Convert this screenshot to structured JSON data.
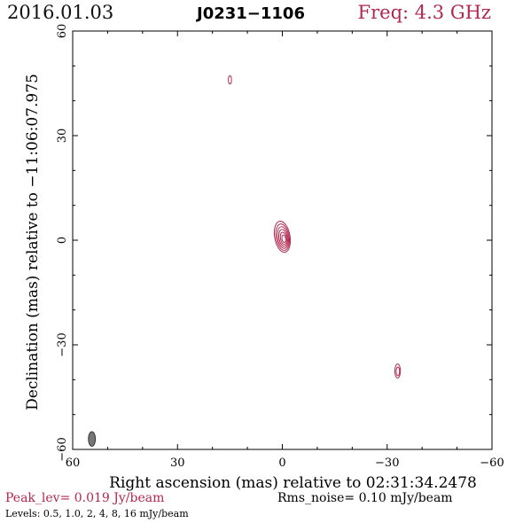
{
  "header": {
    "date": "2016.01.03",
    "source": "J0231−1106",
    "frequency": "Freq: 4.3 GHz"
  },
  "footer": {
    "peak": "Peak_lev=  0.019 Jy/beam",
    "rms": "Rms_noise= 0.10 mJy/beam",
    "levels": "Levels: 0.5, 1.0,   2,   4,   8,  16 mJy/beam"
  },
  "colors": {
    "contour": "#b0284f",
    "title_accent": "#b0284f",
    "beam": "#777777"
  },
  "chart_data": {
    "type": "contour",
    "xlabel": "Right ascension (mas) relative to 02:31:34.2478",
    "ylabel": "Declination (mas) relative to −11:06:07.975",
    "xlim": [
      60,
      -60
    ],
    "ylim": [
      -60,
      60
    ],
    "xticks": [
      60,
      30,
      0,
      -30,
      -60
    ],
    "yticks": [
      -60,
      -30,
      0,
      30,
      60
    ],
    "xtick_labels": [
      "60",
      "30",
      "0",
      "−30",
      "−60"
    ],
    "ytick_labels": [
      "−60",
      "−30",
      "0",
      "30",
      "60"
    ],
    "contour_levels_mJy_per_beam": [
      0.5,
      1.0,
      2,
      4,
      8,
      16
    ],
    "peak_Jy_per_beam": 0.019,
    "rms_noise_mJy_per_beam": 0.1,
    "components": [
      {
        "ra": 0,
        "dec": 1,
        "semi_ra": 2.2,
        "semi_dec": 4.5,
        "levels": 6,
        "pa": -10
      },
      {
        "ra": 15,
        "dec": 46,
        "semi_ra": 0.45,
        "semi_dec": 1.2,
        "levels": 1,
        "pa": 0
      },
      {
        "ra": -33,
        "dec": -37.5,
        "semi_ra": 0.8,
        "semi_dec": 2.0,
        "levels": 2,
        "pa": 0
      }
    ],
    "beam": {
      "ra": 54.5,
      "dec": -57,
      "semi_ra": 1.0,
      "semi_dec": 2.1,
      "pa": 0
    }
  }
}
